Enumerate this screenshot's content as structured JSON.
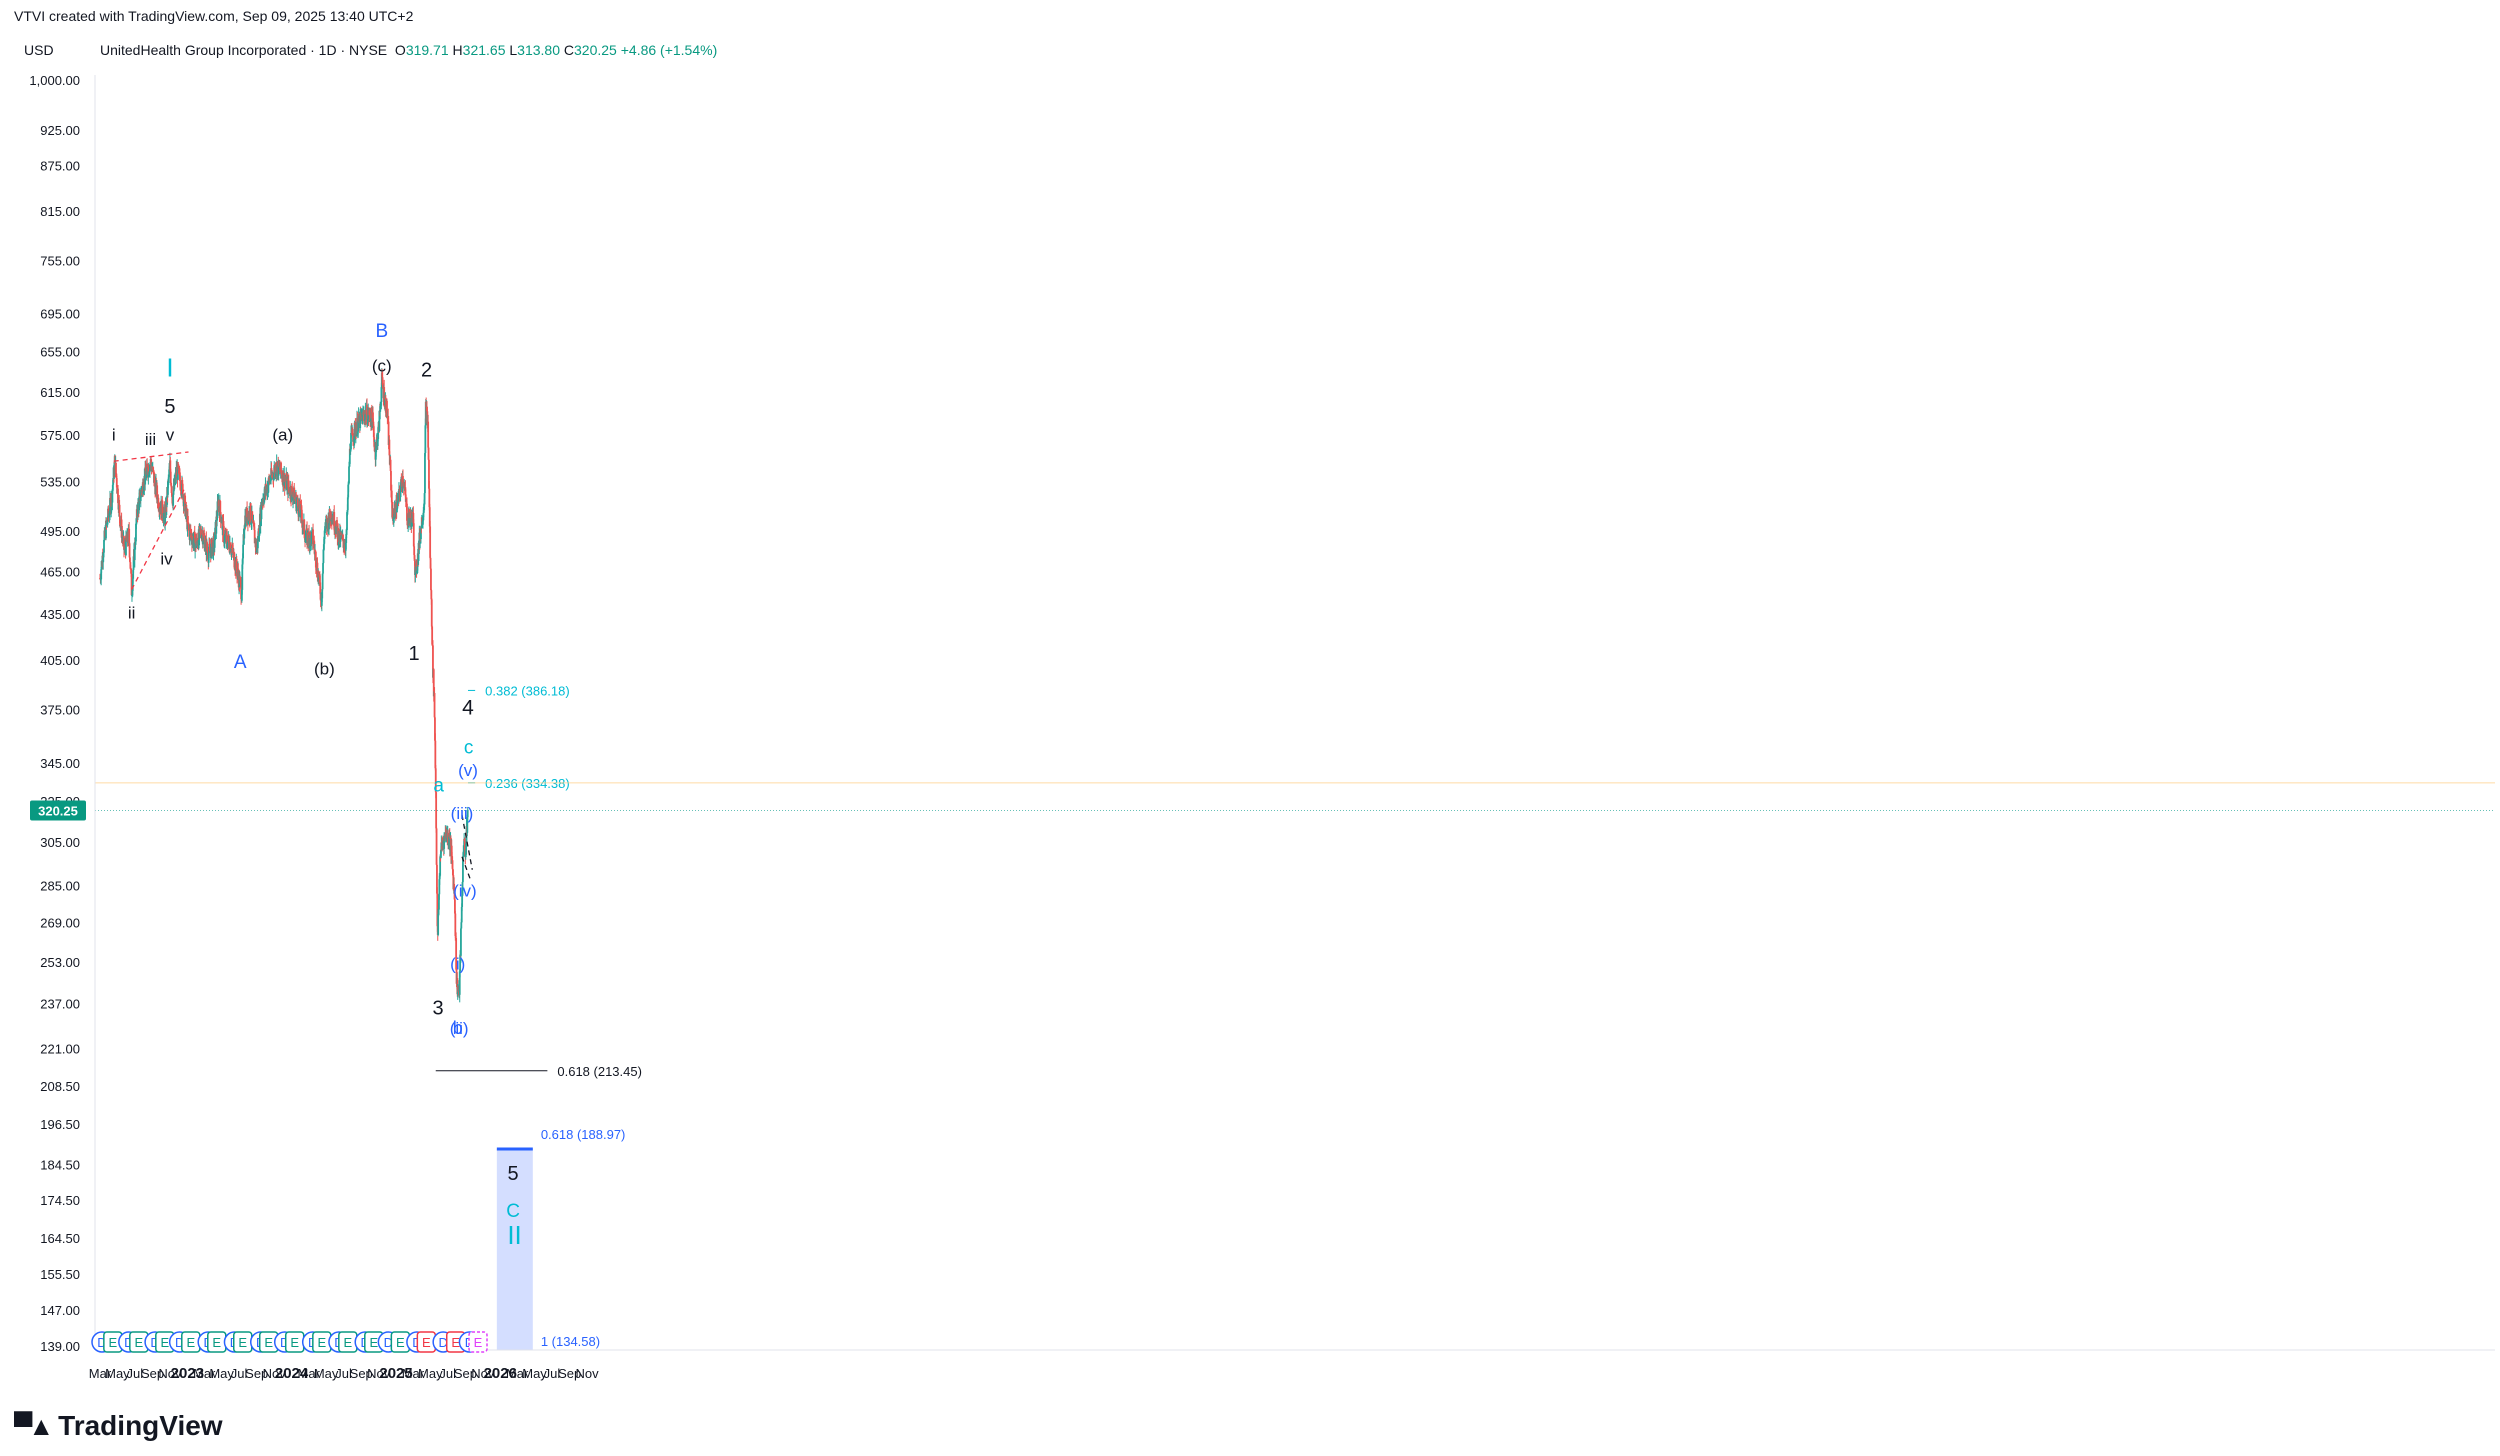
{
  "header": {
    "credit": "VTVI created with TradingView.com, Sep 09, 2025 13:40 UTC+2",
    "symbol": "UnitedHealth Group Incorporated · 1D · NYSE",
    "o_label": "O",
    "o_value": "319.71",
    "h_label": "H",
    "h_value": "321.65",
    "l_label": "L",
    "l_value": "313.80",
    "c_label": "C",
    "c_value": "320.25",
    "change": "+4.86 (+1.54%)",
    "currency": "USD"
  },
  "footer": {
    "logo_text": "TradingView",
    "logo_icon": "tradingview-logo-icon"
  },
  "colors": {
    "up": "#26a69a",
    "down": "#ef5350",
    "price_tag": "#089981",
    "black_label": "#131722",
    "blue_label": "#2962ff",
    "cyan_label": "#00bcd4",
    "fib_box": "#c9d6ff",
    "fib_line": "#2962ff",
    "triangle": "#f23645"
  },
  "chart_data": {
    "type": "candlestick",
    "title": "UnitedHealth Group Incorporated · 1D · NYSE",
    "ylabel": "USD",
    "y_scale": "log",
    "ylim": [
      139,
      1000
    ],
    "x_range": [
      "2022-03",
      "2026-11"
    ],
    "grid": false,
    "last_price": "320.25",
    "y_ticks": [
      "1,000.00",
      "925.00",
      "875.00",
      "815.00",
      "755.00",
      "695.00",
      "655.00",
      "615.00",
      "575.00",
      "535.00",
      "495.00",
      "465.00",
      "435.00",
      "405.00",
      "375.00",
      "345.00",
      "325.00",
      "305.00",
      "285.00",
      "269.00",
      "253.00",
      "237.00",
      "221.00",
      "208.50",
      "196.50",
      "184.50",
      "174.50",
      "164.50",
      "155.50",
      "147.00",
      "139.00"
    ],
    "x_ticks": [
      {
        "label": "Mar",
        "date": "2022-03"
      },
      {
        "label": "May",
        "date": "2022-05"
      },
      {
        "label": "Jul",
        "date": "2022-07"
      },
      {
        "label": "Sep",
        "date": "2022-09"
      },
      {
        "label": "Nov",
        "date": "2022-11"
      },
      {
        "label": "2023",
        "date": "2023-01"
      },
      {
        "label": "Mar",
        "date": "2023-03"
      },
      {
        "label": "May",
        "date": "2023-05"
      },
      {
        "label": "Jul",
        "date": "2023-07"
      },
      {
        "label": "Sep",
        "date": "2023-09"
      },
      {
        "label": "Nov",
        "date": "2023-11"
      },
      {
        "label": "2024",
        "date": "2024-01"
      },
      {
        "label": "Mar",
        "date": "2024-03"
      },
      {
        "label": "May",
        "date": "2024-05"
      },
      {
        "label": "Jul",
        "date": "2024-07"
      },
      {
        "label": "Sep",
        "date": "2024-09"
      },
      {
        "label": "Nov",
        "date": "2024-11"
      },
      {
        "label": "2025",
        "date": "2025-01"
      },
      {
        "label": "Mar",
        "date": "2025-03"
      },
      {
        "label": "May",
        "date": "2025-05"
      },
      {
        "label": "Jul",
        "date": "2025-07"
      },
      {
        "label": "Sep",
        "date": "2025-09"
      },
      {
        "label": "Nov",
        "date": "2025-11"
      },
      {
        "label": "2026",
        "date": "2026-01"
      },
      {
        "label": "Mar",
        "date": "2026-03"
      },
      {
        "label": "May",
        "date": "2026-05"
      },
      {
        "label": "Jul",
        "date": "2026-07"
      },
      {
        "label": "Sep",
        "date": "2026-09"
      },
      {
        "label": "Nov",
        "date": "2026-11"
      }
    ],
    "price_path": [
      [
        "2022-03-01",
        460
      ],
      [
        "2022-03-20",
        495
      ],
      [
        "2022-04-10",
        520
      ],
      [
        "2022-04-22",
        552
      ],
      [
        "2022-05-10",
        505
      ],
      [
        "2022-05-25",
        480
      ],
      [
        "2022-06-10",
        492
      ],
      [
        "2022-06-20",
        450
      ],
      [
        "2022-07-10",
        512
      ],
      [
        "2022-08-01",
        535
      ],
      [
        "2022-08-25",
        552
      ],
      [
        "2022-09-20",
        520
      ],
      [
        "2022-10-15",
        505
      ],
      [
        "2022-11-01",
        548
      ],
      [
        "2022-11-10",
        520
      ],
      [
        "2022-11-25",
        545
      ],
      [
        "2022-12-15",
        528
      ],
      [
        "2023-01-05",
        495
      ],
      [
        "2023-02-01",
        485
      ],
      [
        "2023-02-20",
        495
      ],
      [
        "2023-03-15",
        478
      ],
      [
        "2023-04-05",
        485
      ],
      [
        "2023-04-20",
        520
      ],
      [
        "2023-05-10",
        490
      ],
      [
        "2023-06-01",
        485
      ],
      [
        "2023-06-25",
        465
      ],
      [
        "2023-07-10",
        450
      ],
      [
        "2023-07-20",
        505
      ],
      [
        "2023-08-10",
        510
      ],
      [
        "2023-09-01",
        480
      ],
      [
        "2023-09-20",
        520
      ],
      [
        "2023-10-15",
        535
      ],
      [
        "2023-11-10",
        548
      ],
      [
        "2023-12-01",
        540
      ],
      [
        "2023-12-20",
        530
      ],
      [
        "2024-01-05",
        525
      ],
      [
        "2024-02-01",
        510
      ],
      [
        "2024-02-20",
        490
      ],
      [
        "2024-03-15",
        490
      ],
      [
        "2024-04-05",
        460
      ],
      [
        "2024-04-15",
        445
      ],
      [
        "2024-04-25",
        495
      ],
      [
        "2024-05-20",
        510
      ],
      [
        "2024-06-15",
        490
      ],
      [
        "2024-07-10",
        485
      ],
      [
        "2024-07-25",
        570
      ],
      [
        "2024-08-20",
        585
      ],
      [
        "2024-09-15",
        595
      ],
      [
        "2024-10-10",
        590
      ],
      [
        "2024-10-20",
        560
      ],
      [
        "2024-11-01",
        580
      ],
      [
        "2024-11-12",
        625
      ],
      [
        "2024-12-01",
        595
      ],
      [
        "2024-12-20",
        505
      ],
      [
        "2025-01-10",
        520
      ],
      [
        "2025-01-25",
        540
      ],
      [
        "2025-02-10",
        505
      ],
      [
        "2025-03-01",
        505
      ],
      [
        "2025-03-10",
        460
      ],
      [
        "2025-03-25",
        490
      ],
      [
        "2025-04-10",
        520
      ],
      [
        "2025-04-15",
        600
      ],
      [
        "2025-04-22",
        585
      ],
      [
        "2025-05-01",
        470
      ],
      [
        "2025-05-10",
        400
      ],
      [
        "2025-05-15",
        380
      ],
      [
        "2025-05-20",
        330
      ],
      [
        "2025-05-26",
        260
      ],
      [
        "2025-06-05",
        300
      ],
      [
        "2025-06-25",
        310
      ],
      [
        "2025-07-10",
        305
      ],
      [
        "2025-07-25",
        280
      ],
      [
        "2025-08-01",
        245
      ],
      [
        "2025-08-10",
        240
      ],
      [
        "2025-08-18",
        270
      ],
      [
        "2025-08-25",
        305
      ],
      [
        "2025-09-02",
        300
      ],
      [
        "2025-09-09",
        320.25
      ]
    ],
    "ellipse": {
      "label": "Ellipse",
      "color": "#2962ff"
    },
    "fibonacci_levels": [
      {
        "label": "0.382 (386.18)",
        "price": 386.18,
        "color": "#00bcd4"
      },
      {
        "label": "0.236 (334.38)",
        "price": 334.38,
        "color": "#00bcd4"
      },
      {
        "label": "0.618 (213.45)",
        "price": 213.45,
        "color": "#131722"
      },
      {
        "label": "0.618 (188.97)",
        "price": 188.97,
        "color": "#2962ff"
      },
      {
        "label": "1 (134.58)",
        "price": 134.58,
        "color": "#2962ff"
      }
    ],
    "wave_labels": [
      {
        "text": "I",
        "date": "2022-11-01",
        "price": 630,
        "color": "#00bcd4",
        "size": 26
      },
      {
        "text": "5",
        "date": "2022-11-01",
        "price": 595,
        "color": "#131722",
        "size": 20
      },
      {
        "text": "v",
        "date": "2022-11-01",
        "price": 570,
        "color": "#131722",
        "size": 17
      },
      {
        "text": "i",
        "date": "2022-04-18",
        "price": 570,
        "color": "#131722",
        "size": 17
      },
      {
        "text": "iii",
        "date": "2022-08-25",
        "price": 566,
        "color": "#131722",
        "size": 17
      },
      {
        "text": "ii",
        "date": "2022-06-20",
        "price": 432,
        "color": "#131722",
        "size": 17
      },
      {
        "text": "iv",
        "date": "2022-10-20",
        "price": 470,
        "color": "#131722",
        "size": 17
      },
      {
        "text": "A",
        "date": "2023-07-05",
        "price": 400,
        "color": "#2962ff",
        "size": 19
      },
      {
        "text": "(a)",
        "date": "2023-12-01",
        "price": 570,
        "color": "#131722",
        "size": 17
      },
      {
        "text": "(b)",
        "date": "2024-04-25",
        "price": 396,
        "color": "#131722",
        "size": 17
      },
      {
        "text": "B",
        "date": "2024-11-12",
        "price": 670,
        "color": "#2962ff",
        "size": 19
      },
      {
        "text": "(c)",
        "date": "2024-11-12",
        "price": 635,
        "color": "#131722",
        "size": 17
      },
      {
        "text": "2",
        "date": "2025-04-18",
        "price": 630,
        "color": "#131722",
        "size": 20
      },
      {
        "text": "1",
        "date": "2025-03-05",
        "price": 405,
        "color": "#131722",
        "size": 20
      },
      {
        "text": "3",
        "date": "2025-05-28",
        "price": 233,
        "color": "#131722",
        "size": 20
      },
      {
        "text": "a",
        "date": "2025-05-30",
        "price": 330,
        "color": "#00bcd4",
        "size": 19
      },
      {
        "text": "4",
        "date": "2025-09-10",
        "price": 372,
        "color": "#131722",
        "size": 21
      },
      {
        "text": "c",
        "date": "2025-09-12",
        "price": 350,
        "color": "#00bcd4",
        "size": 19
      },
      {
        "text": "(v)",
        "date": "2025-09-10",
        "price": 338,
        "color": "#2962ff",
        "size": 17
      },
      {
        "text": "(iii)",
        "date": "2025-08-20",
        "price": 316,
        "color": "#2962ff",
        "size": 17
      },
      {
        "text": "(iv)",
        "date": "2025-08-30",
        "price": 280,
        "color": "#2962ff",
        "size": 17
      },
      {
        "text": "(i)",
        "date": "2025-08-05",
        "price": 250,
        "color": "#2962ff",
        "size": 17
      },
      {
        "text": "b",
        "date": "2025-08-05",
        "price": 226,
        "color": "#2962ff",
        "size": 18
      },
      {
        "text": "(ii)",
        "date": "2025-08-10",
        "price": 226,
        "color": "#2962ff",
        "size": 17
      },
      {
        "text": "5",
        "date": "2026-02-15",
        "price": 180,
        "color": "#131722",
        "size": 20
      },
      {
        "text": "C",
        "date": "2026-02-15",
        "price": 170,
        "color": "#00bcd4",
        "size": 19
      },
      {
        "text": "II",
        "date": "2026-02-20",
        "price": 163,
        "color": "#00bcd4",
        "size": 26
      }
    ],
    "events": [
      {
        "type": "D",
        "date": "2022-03-08"
      },
      {
        "type": "E",
        "date": "2022-04-15"
      },
      {
        "type": "D",
        "date": "2022-06-10"
      },
      {
        "type": "E",
        "date": "2022-07-15"
      },
      {
        "type": "D",
        "date": "2022-09-10"
      },
      {
        "type": "E",
        "date": "2022-10-14"
      },
      {
        "type": "D",
        "date": "2022-12-05"
      },
      {
        "type": "E",
        "date": "2023-01-13"
      },
      {
        "type": "D",
        "date": "2023-03-15"
      },
      {
        "type": "E",
        "date": "2023-04-14"
      },
      {
        "type": "D",
        "date": "2023-06-15"
      },
      {
        "type": "E",
        "date": "2023-07-14"
      },
      {
        "type": "D",
        "date": "2023-09-15"
      },
      {
        "type": "E",
        "date": "2023-10-13"
      },
      {
        "type": "D",
        "date": "2023-12-08"
      },
      {
        "type": "E",
        "date": "2024-01-12"
      },
      {
        "type": "D",
        "date": "2024-03-15"
      },
      {
        "type": "E",
        "date": "2024-04-16"
      },
      {
        "type": "D",
        "date": "2024-06-15"
      },
      {
        "type": "E",
        "date": "2024-07-16"
      },
      {
        "type": "D",
        "date": "2024-09-15"
      },
      {
        "type": "E",
        "date": "2024-10-15"
      },
      {
        "type": "D",
        "date": "2024-12-05"
      },
      {
        "type": "E",
        "date": "2025-01-16"
      },
      {
        "type": "D",
        "date": "2025-03-15"
      },
      {
        "type": "E",
        "date": "2025-04-17",
        "negative": true
      },
      {
        "type": "D",
        "date": "2025-06-15"
      },
      {
        "type": "E",
        "date": "2025-07-29",
        "negative": true
      },
      {
        "type": "D",
        "date": "2025-09-15"
      },
      {
        "type": "E",
        "date": "2025-10-15",
        "future": true
      }
    ]
  }
}
